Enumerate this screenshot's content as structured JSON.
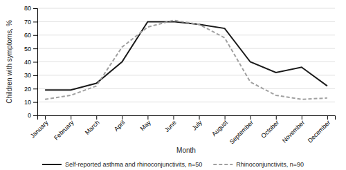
{
  "chart_data": {
    "type": "line",
    "xlabel": "Month",
    "ylabel": "Children with symptoms, %",
    "categories": [
      "January",
      "February",
      "March",
      "April",
      "May",
      "June",
      "July",
      "August",
      "September",
      "October",
      "November",
      "December"
    ],
    "series": [
      {
        "name": "Self-reported asthma and rhinoconjunctivits, n=50",
        "color": "#1a1a1a",
        "line_style": "solid",
        "values": [
          19,
          19,
          24,
          40,
          70,
          70,
          68,
          65,
          40,
          32,
          36,
          22
        ]
      },
      {
        "name": "Rhinoconjunctivits, n=90",
        "color": "#a0a0a0",
        "line_style": "dashed",
        "values": [
          12,
          15,
          22,
          51,
          66,
          71,
          68,
          58,
          25,
          15,
          12,
          13
        ]
      }
    ],
    "ylim": [
      0,
      80
    ],
    "yticks": [
      0,
      10,
      20,
      30,
      40,
      50,
      60,
      70,
      80
    ],
    "grid": true,
    "legend": "bottom"
  }
}
